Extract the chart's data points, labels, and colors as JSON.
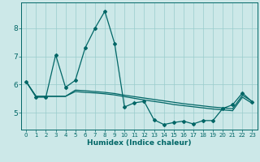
{
  "xlabel": "Humidex (Indice chaleur)",
  "background_color": "#cce8e8",
  "grid_color": "#99cccc",
  "line_color": "#006666",
  "xlim": [
    -0.5,
    23.5
  ],
  "ylim": [
    4.4,
    8.9
  ],
  "yticks": [
    5,
    6,
    7,
    8
  ],
  "xticks": [
    0,
    1,
    2,
    3,
    4,
    5,
    6,
    7,
    8,
    9,
    10,
    11,
    12,
    13,
    14,
    15,
    16,
    17,
    18,
    19,
    20,
    21,
    22,
    23
  ],
  "series1_x": [
    0,
    1,
    2,
    3,
    4,
    5,
    6,
    7,
    8,
    9,
    10,
    11,
    12,
    13,
    14,
    15,
    16,
    17,
    18,
    19,
    20,
    21,
    22,
    23
  ],
  "series1_y": [
    6.1,
    5.55,
    5.55,
    7.05,
    5.9,
    6.15,
    7.3,
    8.0,
    8.6,
    7.45,
    5.2,
    5.35,
    5.4,
    4.75,
    4.58,
    4.65,
    4.7,
    4.6,
    4.72,
    4.72,
    5.15,
    5.28,
    5.7,
    5.38
  ],
  "series2_x": [
    0,
    1,
    2,
    3,
    4,
    5,
    6,
    7,
    8,
    9,
    10,
    11,
    12,
    13,
    14,
    15,
    16,
    17,
    18,
    19,
    20,
    21,
    22,
    23
  ],
  "series2_y": [
    6.1,
    5.58,
    5.58,
    5.58,
    5.58,
    5.8,
    5.78,
    5.75,
    5.72,
    5.68,
    5.62,
    5.57,
    5.52,
    5.47,
    5.42,
    5.37,
    5.32,
    5.28,
    5.24,
    5.2,
    5.17,
    5.14,
    5.62,
    5.4
  ],
  "series3_x": [
    0,
    1,
    2,
    3,
    4,
    5,
    6,
    7,
    8,
    9,
    10,
    11,
    12,
    13,
    14,
    15,
    16,
    17,
    18,
    19,
    20,
    21,
    22,
    23
  ],
  "series3_y": [
    6.1,
    5.58,
    5.58,
    5.58,
    5.58,
    5.75,
    5.72,
    5.7,
    5.67,
    5.63,
    5.57,
    5.51,
    5.45,
    5.4,
    5.35,
    5.29,
    5.25,
    5.21,
    5.17,
    5.13,
    5.1,
    5.07,
    5.55,
    5.33
  ]
}
